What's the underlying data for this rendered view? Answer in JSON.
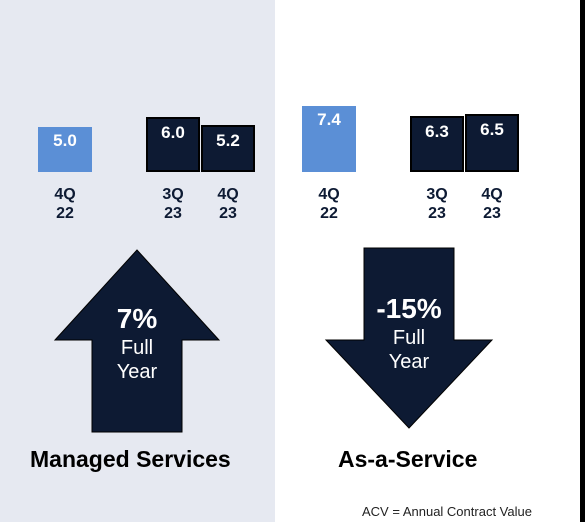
{
  "chart_data": [
    {
      "type": "bar",
      "title": "Managed Services",
      "categories": [
        [
          "4Q",
          "22"
        ],
        [
          "3Q",
          "23"
        ],
        [
          "4Q",
          "23"
        ]
      ],
      "values": [
        5.0,
        6.0,
        5.2
      ],
      "value_labels": [
        "5.0",
        "6.0",
        "5.2"
      ],
      "change": {
        "value": "7%",
        "label_line1": "Full",
        "label_line2": "Year",
        "direction": "up"
      },
      "colors": {
        "prior_year": "#5b8fd6",
        "current_year": "#0d1a33",
        "arrow": "#0d1a33"
      }
    },
    {
      "type": "bar",
      "title": "As-a-Service",
      "categories": [
        [
          "4Q",
          "22"
        ],
        [
          "3Q",
          "23"
        ],
        [
          "4Q",
          "23"
        ]
      ],
      "values": [
        7.4,
        6.3,
        6.5
      ],
      "value_labels": [
        "7.4",
        "6.3",
        "6.5"
      ],
      "change": {
        "value": "-15%",
        "label_line1": "Full",
        "label_line2": "Year",
        "direction": "down"
      },
      "colors": {
        "prior_year": "#5b8fd6",
        "current_year": "#0d1a33",
        "arrow": "#0d1a33"
      }
    }
  ],
  "footnote": "ACV = Annual Contract Value"
}
